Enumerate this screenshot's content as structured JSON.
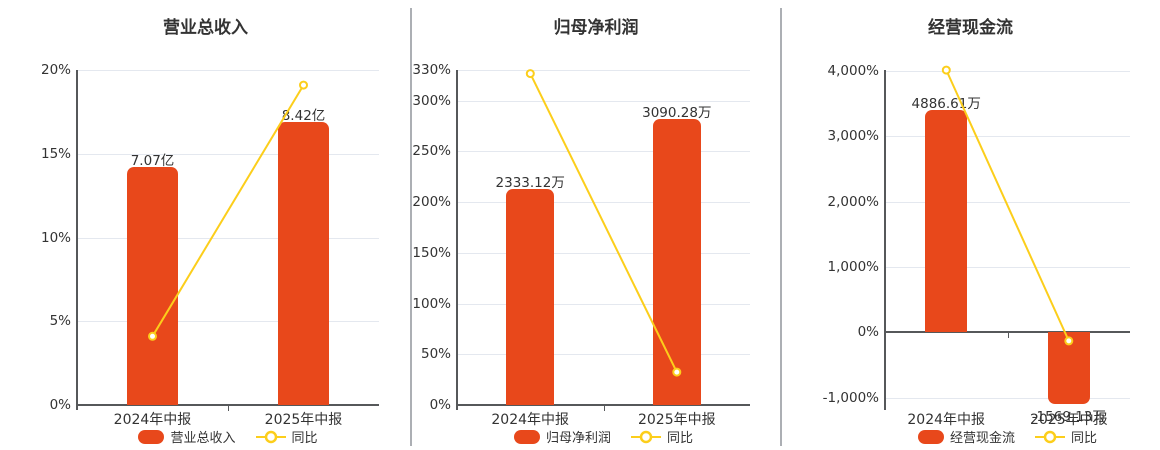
{
  "page": {
    "background": "#ffffff"
  },
  "colors": {
    "bar": "#e8481b",
    "line": "#fcce1b",
    "marker_fill": "#ffffff",
    "grid": "#e4e8ef",
    "axis": "#56585a",
    "text": "#333333",
    "divider": "#acafb4"
  },
  "chart_data": [
    {
      "type": "bar",
      "title": "营业总收入",
      "categories": [
        "2024年中报",
        "2025年中报"
      ],
      "bar_series": {
        "name": "营业总收入",
        "values": [
          7.07,
          8.42
        ],
        "unit": "亿",
        "labels": [
          "7.07亿",
          "8.42亿"
        ]
      },
      "line_series": {
        "name": "同比",
        "values_pct": [
          4.1,
          19.1
        ]
      },
      "ylim": [
        0,
        20
      ],
      "yticks": [
        0,
        5,
        10,
        15,
        20
      ],
      "ytick_labels": [
        "0%",
        "5%",
        "10%",
        "15%",
        "20%"
      ],
      "bar_ylim": [
        0,
        9.95
      ],
      "grid": true,
      "legend_position": "bottom",
      "legend": {
        "bar_label": "营业总收入",
        "line_label": "同比"
      }
    },
    {
      "type": "bar",
      "title": "归母净利润",
      "categories": [
        "2024年中报",
        "2025年中报"
      ],
      "bar_series": {
        "name": "归母净利润",
        "values": [
          2333.12,
          3090.28
        ],
        "unit": "万",
        "labels": [
          "2333.12万",
          "3090.28万"
        ]
      },
      "line_series": {
        "name": "同比",
        "values_pct": [
          326.5,
          32.45
        ]
      },
      "ylim": [
        0,
        330
      ],
      "yticks": [
        0,
        50,
        100,
        150,
        200,
        250,
        300,
        330
      ],
      "ytick_labels": [
        "0%",
        "50%",
        "100%",
        "150%",
        "200%",
        "250%",
        "300%",
        "330%"
      ],
      "bar_ylim": [
        0,
        3620
      ],
      "grid": true,
      "legend_position": "bottom",
      "legend": {
        "bar_label": "归母净利润",
        "line_label": "同比"
      }
    },
    {
      "type": "bar",
      "title": "经营现金流",
      "categories": [
        "2024年中报",
        "2025年中报"
      ],
      "bar_series": {
        "name": "经营现金流",
        "values": [
          4886.61,
          -1569.13
        ],
        "unit": "万",
        "labels": [
          "4886.61万",
          "-1569.13万"
        ]
      },
      "line_series": {
        "name": "同比",
        "values_pct": [
          4016,
          -132.1
        ]
      },
      "ylim": [
        -1113,
        4017
      ],
      "yticks": [
        -1000,
        0,
        1000,
        2000,
        3000,
        4000
      ],
      "ytick_labels": [
        "-1,000%",
        "0%",
        "1,000%",
        "2,000%",
        "3,000%",
        "4,000%"
      ],
      "bar_ylim": [
        -1598,
        5767
      ],
      "grid": true,
      "legend_position": "bottom",
      "legend": {
        "bar_label": "经营现金流",
        "line_label": "同比"
      }
    }
  ]
}
